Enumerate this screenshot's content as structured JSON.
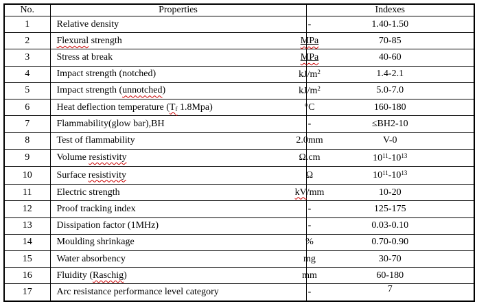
{
  "colors": {
    "border": "#000000",
    "text": "#000000",
    "spellcheck_squiggle": "#cc0000",
    "background": "#ffffff"
  },
  "table": {
    "header": {
      "no": "No.",
      "properties": "Properties",
      "indexes": "Indexes"
    },
    "rows": [
      {
        "no": "1",
        "property": [
          {
            "t": "Relative density"
          }
        ],
        "unit": [
          {
            "t": "-"
          }
        ],
        "index": [
          {
            "t": "1.40-1.50"
          }
        ]
      },
      {
        "no": "2",
        "property": [
          {
            "t": "Flexural",
            "sq": true
          },
          {
            "t": " strength"
          }
        ],
        "unit": [
          {
            "t": "MPa",
            "u": true,
            "sq": true
          }
        ],
        "index": [
          {
            "t": "70-85"
          }
        ]
      },
      {
        "no": "3",
        "property": [
          {
            "t": "Stress at break"
          }
        ],
        "unit": [
          {
            "t": "MPa",
            "u": true,
            "sq": true
          }
        ],
        "index": [
          {
            "t": "40-60"
          }
        ]
      },
      {
        "no": "4",
        "property": [
          {
            "t": "Impact strength (notched)"
          }
        ],
        "unit": [
          {
            "t": "kJ/m"
          },
          {
            "t": "2",
            "sup": true
          }
        ],
        "index": [
          {
            "t": "1.4-2.1"
          }
        ]
      },
      {
        "no": "5",
        "property": [
          {
            "t": "Impact strength ("
          },
          {
            "t": "unnotched",
            "sq": true
          },
          {
            "t": ")"
          }
        ],
        "unit": [
          {
            "t": "kJ/m"
          },
          {
            "t": "2",
            "sup": true
          }
        ],
        "index": [
          {
            "t": "5.0-7.0"
          }
        ]
      },
      {
        "no": "6",
        "property": [
          {
            "t": "Heat deflection temperature ("
          },
          {
            "t": "T",
            "sq": true
          },
          {
            "t": "f",
            "sub": true,
            "sq": true
          },
          {
            "t": " 1.8Mpa)"
          }
        ],
        "unit": [
          {
            "t": "°C"
          }
        ],
        "index": [
          {
            "t": "160-180"
          }
        ]
      },
      {
        "no": "7",
        "property": [
          {
            "t": "Flammability(glow bar),BH"
          }
        ],
        "unit": [
          {
            "t": "-"
          }
        ],
        "index": [
          {
            "t": "≤BH2-10"
          }
        ]
      },
      {
        "no": "8",
        "property": [
          {
            "t": "Test of flammability"
          }
        ],
        "unit": [
          {
            "t": "2.0mm"
          }
        ],
        "index": [
          {
            "t": "V-0"
          }
        ]
      },
      {
        "no": "9",
        "property": [
          {
            "t": "Volume "
          },
          {
            "t": "resistivity",
            "sq": true
          }
        ],
        "unit": [
          {
            "t": "Ω.cm"
          }
        ],
        "index": [
          {
            "t": "10"
          },
          {
            "t": "11",
            "sup": true
          },
          {
            "t": "-10"
          },
          {
            "t": "13",
            "sup": true
          }
        ]
      },
      {
        "no": "10",
        "property": [
          {
            "t": "Surface "
          },
          {
            "t": "resistivity",
            "sq": true
          }
        ],
        "unit": [
          {
            "t": "Ω"
          }
        ],
        "index": [
          {
            "t": "10"
          },
          {
            "t": "11",
            "sup": true
          },
          {
            "t": "-10"
          },
          {
            "t": "13",
            "sup": true
          }
        ]
      },
      {
        "no": "11",
        "property": [
          {
            "t": "Electric strength"
          }
        ],
        "unit": [
          {
            "t": "kV",
            "sq": true
          },
          {
            "t": "/mm"
          }
        ],
        "index": [
          {
            "t": "10-20"
          }
        ]
      },
      {
        "no": "12",
        "property": [
          {
            "t": "Proof tracking index"
          }
        ],
        "unit": [
          {
            "t": "-"
          }
        ],
        "index": [
          {
            "t": "125-175"
          }
        ]
      },
      {
        "no": "13",
        "property": [
          {
            "t": "Dissipation factor (1MHz)"
          }
        ],
        "unit": [
          {
            "t": "-"
          }
        ],
        "index": [
          {
            "t": "0.03-0.10"
          }
        ]
      },
      {
        "no": "14",
        "property": [
          {
            "t": "Moulding shrinkage"
          }
        ],
        "unit": [
          {
            "t": "%"
          }
        ],
        "index": [
          {
            "t": "0.70-0.90"
          }
        ]
      },
      {
        "no": "15",
        "property": [
          {
            "t": "Water absorbency"
          }
        ],
        "unit": [
          {
            "t": "mg"
          }
        ],
        "index": [
          {
            "t": "30-70"
          }
        ]
      },
      {
        "no": "16",
        "property": [
          {
            "t": "Fluidity ("
          },
          {
            "t": "Raschig",
            "sq": true
          },
          {
            "t": ")"
          }
        ],
        "unit": [
          {
            "t": "mm"
          }
        ],
        "index": [
          {
            "t": "60-180"
          }
        ]
      },
      {
        "no": "17",
        "property": [
          {
            "t": "Arc resistance performance level category"
          }
        ],
        "unit": [
          {
            "t": "-"
          }
        ],
        "index": [
          {
            "t": "7"
          }
        ],
        "index_top": true
      }
    ]
  }
}
